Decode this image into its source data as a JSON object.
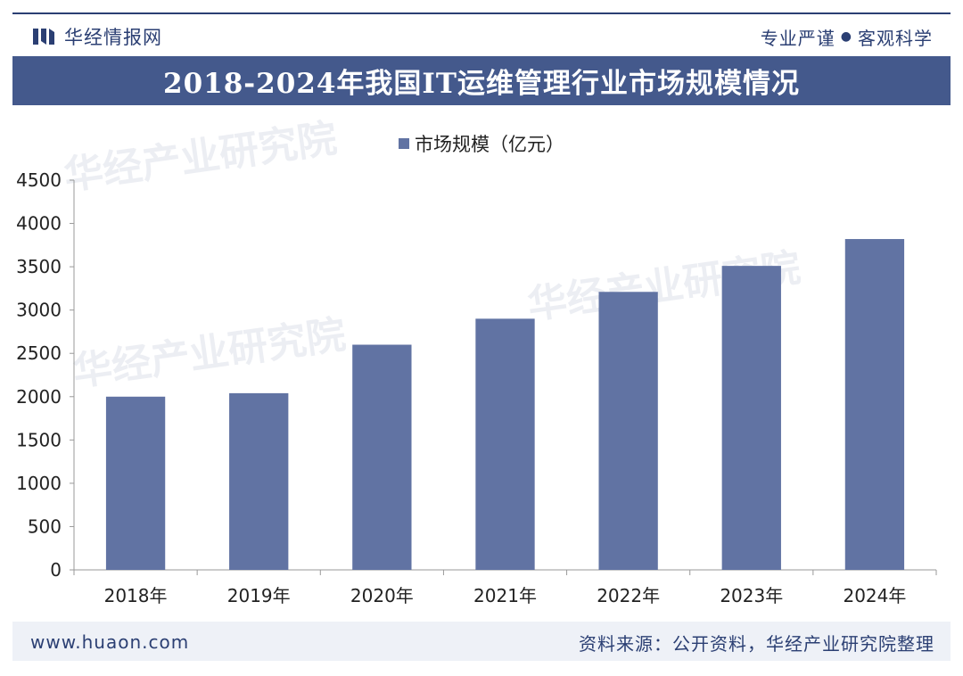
{
  "header": {
    "brand_name": "华经情报网",
    "slogan_left": "专业严谨",
    "slogan_right": "客观科学"
  },
  "footer": {
    "url": "www.huaon.com",
    "source": "资料来源：公开资料，华经产业研究院整理"
  },
  "watermark": {
    "text": "华经产业研究院",
    "url": "www.huaon.com"
  },
  "colors": {
    "bar": "#6173a3",
    "title_bar": "#44598c",
    "brand": "#2b3f73"
  },
  "chart_data": {
    "type": "bar",
    "title": "2018-2024年我国IT运维管理行业市场规模情况",
    "categories": [
      "2018年",
      "2019年",
      "2020年",
      "2021年",
      "2022年",
      "2023年",
      "2024年"
    ],
    "series": [
      {
        "name": "市场规模（亿元）",
        "values": [
          2000,
          2040,
          2600,
          2900,
          3210,
          3510,
          3820
        ]
      }
    ],
    "ylim": [
      0,
      4500
    ],
    "yticks": [
      0,
      500,
      1000,
      1500,
      2000,
      2500,
      3000,
      3500,
      4000,
      4500
    ],
    "grid": false,
    "legend_position": "top-center"
  }
}
